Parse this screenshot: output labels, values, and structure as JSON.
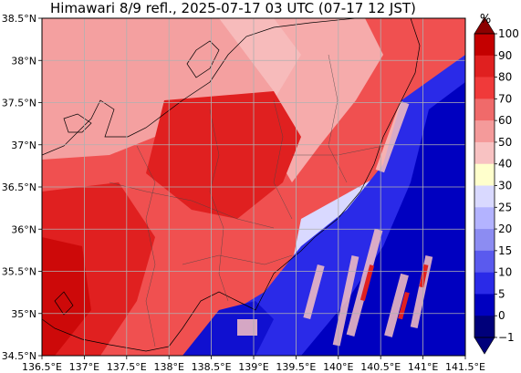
{
  "title": "Himawari 8/9 refl., 2025-07-17 03 UTC (07-17 12 JST)",
  "map": {
    "lon_range": [
      136.5,
      141.5
    ],
    "lat_range": [
      34.5,
      38.5
    ],
    "x_ticks": [
      "136.5°E",
      "137°E",
      "137.5°E",
      "138°E",
      "138.5°E",
      "139°E",
      "139.5°E",
      "140°E",
      "140.5°E",
      "141°E",
      "141.5°E"
    ],
    "y_ticks": [
      "38.5°N",
      "38°N",
      "37.5°N",
      "37°N",
      "36.5°N",
      "36°N",
      "35.5°N",
      "35°N",
      "34.5°N"
    ],
    "grid": true
  },
  "colorbar": {
    "unit": "%",
    "levels": [
      "100",
      "90",
      "80",
      "70",
      "60",
      "50",
      "40",
      "30",
      "25",
      "20",
      "15",
      "10",
      "5",
      "0",
      "−1"
    ],
    "colors": [
      "#8b0000",
      "#c40000",
      "#e02020",
      "#f03a3a",
      "#f06a6a",
      "#f49a9a",
      "#f8c2c2",
      "#ffffcc",
      "#d9d9ff",
      "#b3b3ff",
      "#8c8cf2",
      "#5a5aee",
      "#2a2ae8",
      "#0000c0",
      "#00007a"
    ]
  }
}
